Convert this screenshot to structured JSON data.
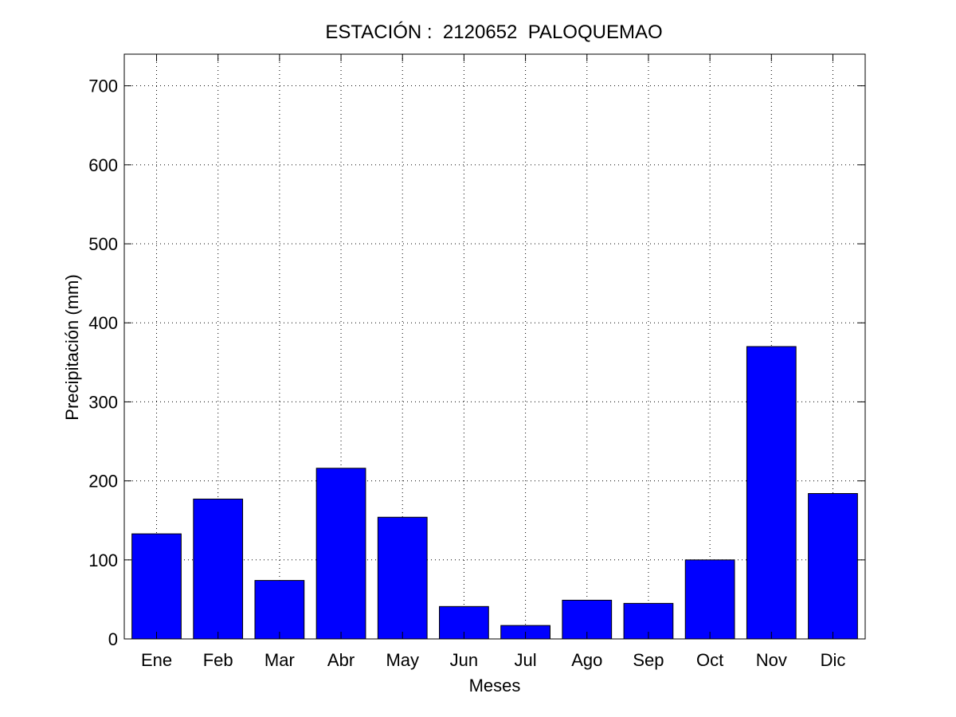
{
  "chart_data": {
    "type": "bar",
    "title": "ESTACIÓN :  2120652  PALOQUEMAO",
    "xlabel": "Meses",
    "ylabel": "Precipitación (mm)",
    "categories": [
      "Ene",
      "Feb",
      "Mar",
      "Abr",
      "May",
      "Jun",
      "Jul",
      "Ago",
      "Sep",
      "Oct",
      "Nov",
      "Dic"
    ],
    "values": [
      133,
      177,
      74,
      216,
      154,
      41,
      17,
      49,
      45,
      100,
      370,
      184
    ],
    "ylim": [
      0,
      740
    ],
    "yticks": [
      0,
      100,
      200,
      300,
      400,
      500,
      600,
      700
    ],
    "grid": true,
    "bar_color": "#0000ff"
  }
}
